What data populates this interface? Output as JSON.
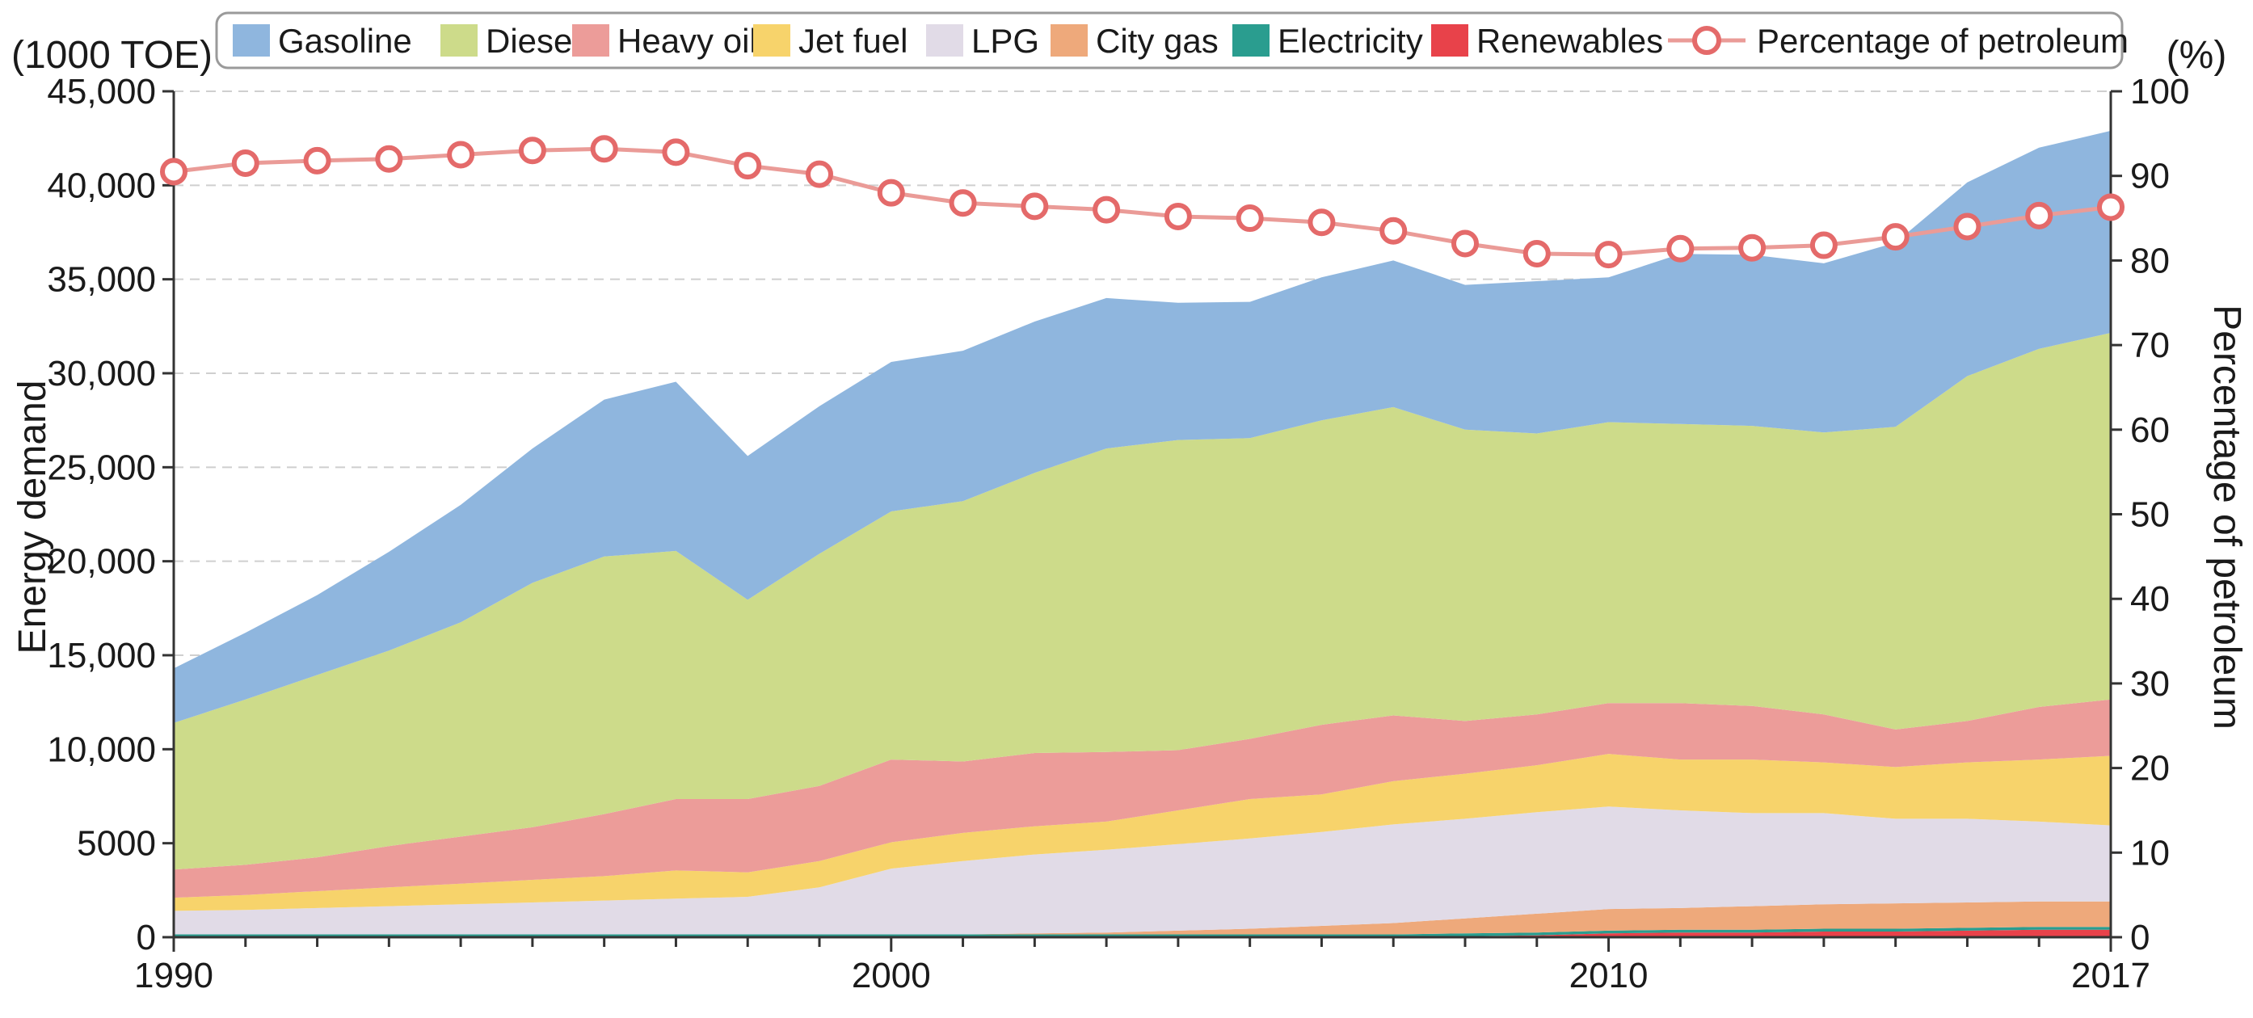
{
  "chart_data": {
    "type": "area",
    "stacked": true,
    "years": [
      1990,
      1991,
      1992,
      1993,
      1994,
      1995,
      1996,
      1997,
      1998,
      1999,
      2000,
      2001,
      2002,
      2003,
      2004,
      2005,
      2006,
      2007,
      2008,
      2009,
      2010,
      2011,
      2012,
      2013,
      2014,
      2015,
      2016,
      2017
    ],
    "y_left_label": "Energy demand",
    "y_left_unit": "(1000 TOE)",
    "y_right_label": "Percentage of petroleum",
    "y_right_unit": "(%)",
    "ylim_left": [
      0,
      45000
    ],
    "ylim_right": [
      0,
      100
    ],
    "left_ticks": [
      "0",
      "5000",
      "10,000",
      "15,000",
      "20,000",
      "25,000",
      "30,000",
      "35,000",
      "40,000",
      "45,000"
    ],
    "right_ticks": [
      "0",
      "10",
      "20",
      "30",
      "40",
      "50",
      "60",
      "70",
      "80",
      "90",
      "100"
    ],
    "x_tick_labels": [
      "1990",
      "2000",
      "2010",
      "2017"
    ],
    "legend_position": "top",
    "series": [
      {
        "name": "Renewables",
        "color": "#e8424a",
        "values": [
          0,
          0,
          0,
          0,
          0,
          0,
          0,
          0,
          0,
          0,
          0,
          0,
          0,
          0,
          0,
          0,
          0,
          0,
          50,
          100,
          200,
          250,
          250,
          300,
          300,
          350,
          400,
          400
        ]
      },
      {
        "name": "Electricity",
        "color": "#2a9d8f",
        "values": [
          150,
          150,
          150,
          150,
          150,
          150,
          150,
          150,
          150,
          150,
          150,
          150,
          150,
          150,
          150,
          150,
          150,
          150,
          150,
          150,
          150,
          150,
          150,
          150,
          150,
          150,
          150,
          150
        ]
      },
      {
        "name": "City gas",
        "color": "#eea97b",
        "values": [
          0,
          0,
          0,
          0,
          0,
          0,
          0,
          0,
          0,
          0,
          0,
          0,
          50,
          100,
          200,
          300,
          450,
          600,
          800,
          1000,
          1150,
          1150,
          1250,
          1300,
          1350,
          1350,
          1350,
          1350
        ]
      },
      {
        "name": "LPG",
        "color": "#e1dbe7",
        "values": [
          1250,
          1300,
          1400,
          1500,
          1600,
          1700,
          1800,
          1900,
          2000,
          2500,
          3500,
          3900,
          4200,
          4400,
          4600,
          4800,
          5000,
          5250,
          5300,
          5400,
          5450,
          5200,
          4950,
          4850,
          4500,
          4450,
          4250,
          4050
        ]
      },
      {
        "name": "Jet fuel",
        "color": "#f7d36b",
        "values": [
          700,
          800,
          900,
          1000,
          1100,
          1200,
          1300,
          1500,
          1300,
          1400,
          1400,
          1500,
          1500,
          1500,
          1800,
          2100,
          2000,
          2300,
          2400,
          2500,
          2800,
          2700,
          2850,
          2700,
          2750,
          3000,
          3300,
          3700
        ]
      },
      {
        "name": "Heavy oil",
        "color": "#ec9c99",
        "values": [
          1500,
          1600,
          1800,
          2200,
          2500,
          2800,
          3300,
          3800,
          3900,
          4000,
          4400,
          3800,
          3900,
          3700,
          3200,
          3200,
          3700,
          3500,
          2800,
          2700,
          2700,
          3000,
          2850,
          2550,
          2000,
          2200,
          2800,
          3000
        ]
      },
      {
        "name": "Diesel",
        "color": "#cddb8a",
        "values": [
          7800,
          8800,
          9700,
          10400,
          11400,
          13000,
          13700,
          13200,
          10600,
          12350,
          13200,
          13850,
          14900,
          16150,
          16500,
          16000,
          16200,
          16400,
          15500,
          14950,
          14950,
          14850,
          14900,
          15000,
          16100,
          18350,
          19050,
          19500
        ]
      },
      {
        "name": "Gasoline",
        "color": "#8fb6de",
        "values": [
          2900,
          3550,
          4250,
          5250,
          6250,
          7150,
          8350,
          9000,
          7650,
          7850,
          7950,
          8000,
          8050,
          8000,
          7300,
          7250,
          7600,
          7800,
          7700,
          8100,
          7700,
          9050,
          9100,
          9000,
          9800,
          10300,
          10700,
          10750
        ]
      }
    ],
    "line_series": {
      "name": "Percentage of petroleum",
      "color": "#ea9b97",
      "values": [
        90.5,
        91.5,
        91.8,
        92.0,
        92.5,
        93.0,
        93.2,
        92.8,
        91.2,
        90.2,
        88.0,
        86.8,
        86.4,
        86.0,
        85.2,
        85.0,
        84.5,
        83.5,
        82.0,
        80.8,
        80.7,
        81.4,
        81.5,
        81.8,
        82.8,
        84.0,
        85.3,
        86.3
      ]
    },
    "legend": [
      "Gasoline",
      "Diesel",
      "Heavy oil",
      "Jet fuel",
      "LPG",
      "City gas",
      "Electricity",
      "Renewables",
      "Percentage of petroleum"
    ]
  }
}
